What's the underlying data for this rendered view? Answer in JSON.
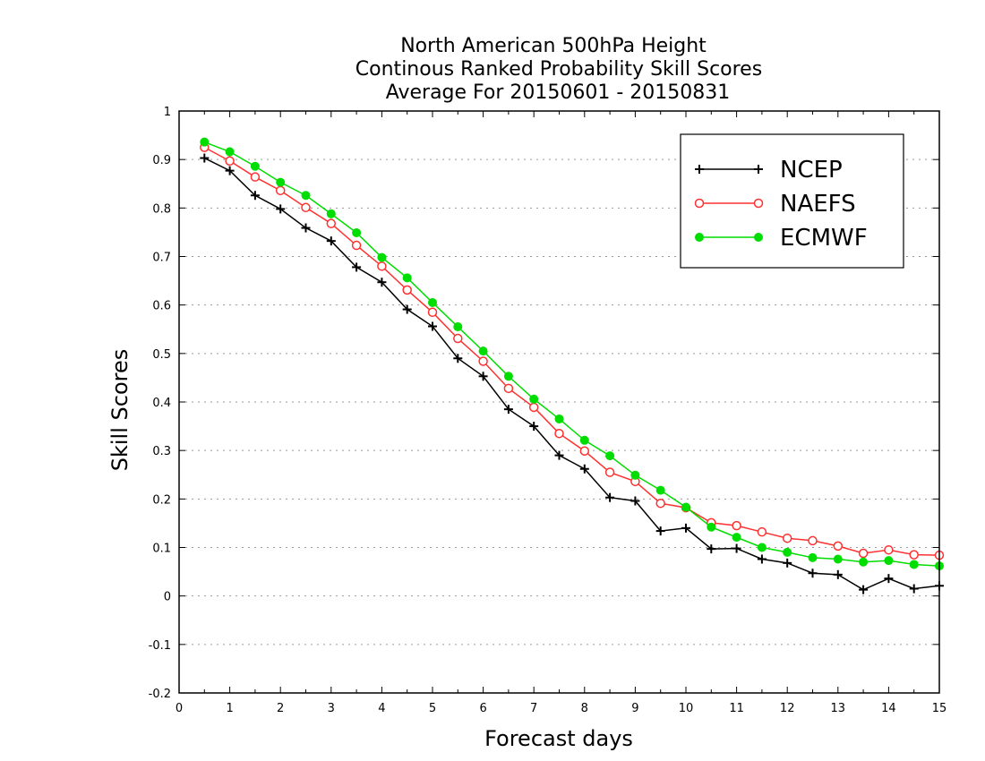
{
  "chart_data": {
    "type": "line",
    "title_lines": [
      "North American 500hPa Height",
      "Continous Ranked Probability Skill Scores",
      "Average For 20150601 - 20150831"
    ],
    "xlabel": "Forecast days",
    "ylabel": "Skill Scores",
    "xlim": [
      0,
      15
    ],
    "ylim": [
      -0.2,
      1
    ],
    "x_ticks": [
      "0",
      "1",
      "2",
      "3",
      "4",
      "5",
      "6",
      "7",
      "8",
      "9",
      "10",
      "11",
      "12",
      "13",
      "14",
      "15"
    ],
    "y_ticks": [
      "1",
      "0.9",
      "0.8",
      "0.7",
      "0.6",
      "0.5",
      "0.4",
      "0.3",
      "0.2",
      "0.1",
      "0",
      "-0.1",
      "-0.2"
    ],
    "grid": "horizontal dotted",
    "legend_position": "top-right",
    "x": [
      0.5,
      1,
      1.5,
      2,
      2.5,
      3,
      3.5,
      4,
      4.5,
      5,
      5.5,
      6,
      6.5,
      7,
      7.5,
      8,
      8.5,
      9,
      9.5,
      10,
      10.5,
      11,
      11.5,
      12,
      12.5,
      13,
      13.5,
      14,
      14.5,
      15
    ],
    "series": [
      {
        "name": "NCEP",
        "color": "#000000",
        "marker": "plus",
        "values": [
          0.903,
          0.877,
          0.826,
          0.798,
          0.759,
          0.732,
          0.678,
          0.647,
          0.591,
          0.556,
          0.49,
          0.453,
          0.385,
          0.35,
          0.29,
          0.262,
          0.203,
          0.196,
          0.134,
          0.14,
          0.097,
          0.098,
          0.076,
          0.068,
          0.047,
          0.044,
          0.013,
          0.036,
          0.015,
          0.021
        ]
      },
      {
        "name": "NAEFS",
        "color": "#ff3030",
        "marker": "open-circle",
        "values": [
          0.925,
          0.897,
          0.864,
          0.836,
          0.801,
          0.768,
          0.723,
          0.68,
          0.631,
          0.585,
          0.531,
          0.484,
          0.428,
          0.389,
          0.335,
          0.299,
          0.255,
          0.236,
          0.191,
          0.182,
          0.151,
          0.145,
          0.132,
          0.119,
          0.114,
          0.103,
          0.088,
          0.095,
          0.085,
          0.084
        ]
      },
      {
        "name": "ECMWF",
        "color": "#00dd00",
        "marker": "filled-circle",
        "values": [
          0.936,
          0.916,
          0.886,
          0.853,
          0.826,
          0.788,
          0.749,
          0.698,
          0.656,
          0.605,
          0.555,
          0.505,
          0.453,
          0.406,
          0.365,
          0.321,
          0.289,
          0.249,
          0.218,
          0.183,
          0.142,
          0.121,
          0.1,
          0.09,
          0.079,
          0.076,
          0.07,
          0.073,
          0.065,
          0.062
        ]
      }
    ]
  }
}
